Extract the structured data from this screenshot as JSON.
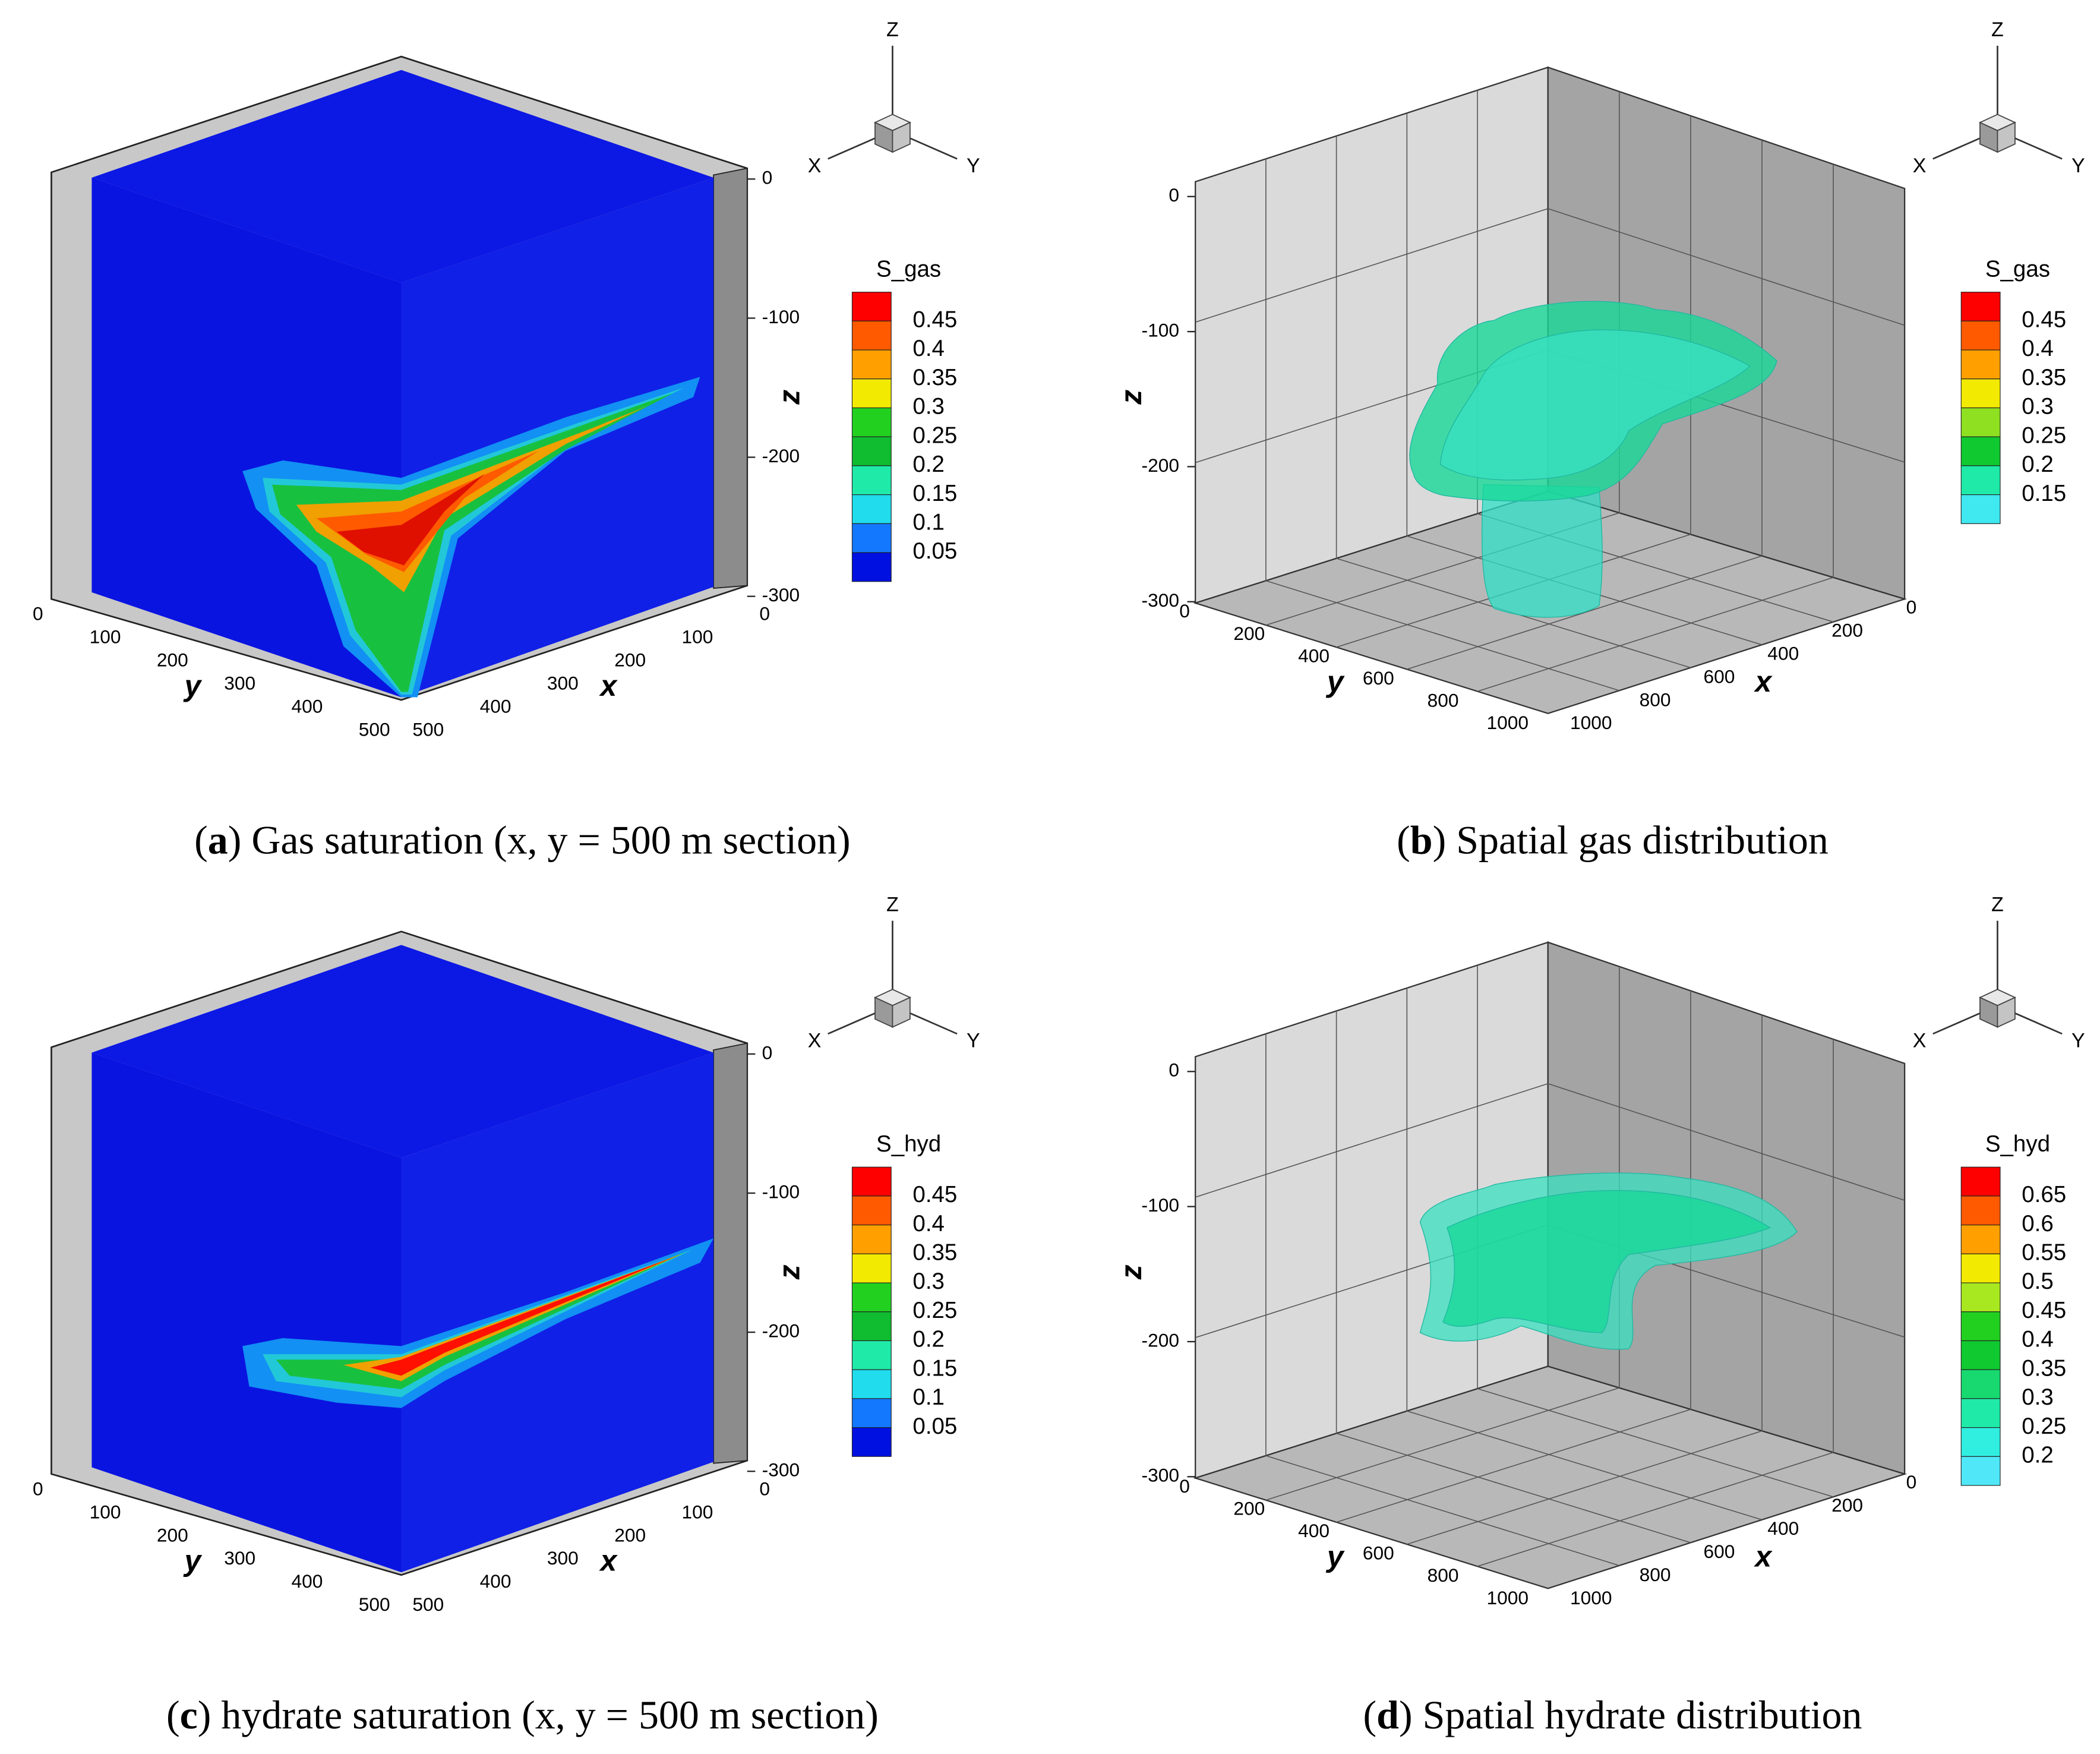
{
  "panels": [
    {
      "kind": "section",
      "caption": {
        "open": "(",
        "letter": "a",
        "text": ") Gas saturation (x, y = 500 m section)"
      },
      "axes": {
        "x_label": "x",
        "y_label": "y",
        "z_label": "z",
        "xticks": [
          0,
          100,
          200,
          300,
          400,
          500
        ],
        "yticks": [
          0,
          100,
          200,
          300,
          400,
          500
        ],
        "zticks": [
          0,
          -100,
          -200,
          -300
        ]
      },
      "triad": {
        "x": "X",
        "y": "Y",
        "z": "Z"
      },
      "colorbar": {
        "title": "S_gas",
        "levels": [
          0.45,
          0.4,
          0.35,
          0.3,
          0.25,
          0.2,
          0.15,
          0.1,
          0.05
        ],
        "colors": [
          "#ff0000",
          "#ff5a00",
          "#ffa000",
          "#f2ea00",
          "#22d020",
          "#10bc30",
          "#20eaa8",
          "#20dcec",
          "#1478ff",
          "#0010e0"
        ]
      }
    },
    {
      "kind": "isosurface",
      "caption": {
        "open": "(",
        "letter": "b",
        "text": ") Spatial gas distribution"
      },
      "axes": {
        "x_label": "x",
        "y_label": "y",
        "z_label": "z",
        "xticks": [
          0,
          200,
          400,
          600,
          800,
          1000
        ],
        "yticks": [
          0,
          200,
          400,
          600,
          800,
          1000
        ],
        "zticks": [
          0,
          -100,
          -200,
          -300
        ]
      },
      "triad": {
        "x": "X",
        "y": "Y",
        "z": "Z"
      },
      "colorbar": {
        "title": "S_gas",
        "levels": [
          0.45,
          0.4,
          0.35,
          0.3,
          0.25,
          0.2,
          0.15
        ],
        "colors": [
          "#ff0000",
          "#ff5a00",
          "#ffa000",
          "#f2ea00",
          "#8ee020",
          "#10c830",
          "#20eaa8",
          "#40e8f0"
        ]
      }
    },
    {
      "kind": "section",
      "caption": {
        "open": "(",
        "letter": "c",
        "text": ") hydrate saturation (x, y = 500 m section)"
      },
      "axes": {
        "x_label": "x",
        "y_label": "y",
        "z_label": "z",
        "xticks": [
          0,
          100,
          200,
          300,
          400,
          500
        ],
        "yticks": [
          0,
          100,
          200,
          300,
          400,
          500
        ],
        "zticks": [
          0,
          -100,
          -200,
          -300
        ]
      },
      "triad": {
        "x": "X",
        "y": "Y",
        "z": "Z"
      },
      "colorbar": {
        "title": "S_hyd",
        "levels": [
          0.45,
          0.4,
          0.35,
          0.3,
          0.25,
          0.2,
          0.15,
          0.1,
          0.05
        ],
        "colors": [
          "#ff0000",
          "#ff5a00",
          "#ffa000",
          "#f2ea00",
          "#22d020",
          "#10bc30",
          "#20eaa8",
          "#20dcec",
          "#1478ff",
          "#0010e0"
        ]
      }
    },
    {
      "kind": "isosurface",
      "caption": {
        "open": "(",
        "letter": "d",
        "text": ") Spatial hydrate distribution"
      },
      "axes": {
        "x_label": "x",
        "y_label": "y",
        "z_label": "z",
        "xticks": [
          0,
          200,
          400,
          600,
          800,
          1000
        ],
        "yticks": [
          0,
          200,
          400,
          600,
          800,
          1000
        ],
        "zticks": [
          0,
          -100,
          -200,
          -300
        ]
      },
      "triad": {
        "x": "X",
        "y": "Y",
        "z": "Z"
      },
      "colorbar": {
        "title": "S_hyd",
        "levels": [
          0.65,
          0.6,
          0.55,
          0.5,
          0.45,
          0.4,
          0.35,
          0.3,
          0.25,
          0.2
        ],
        "colors": [
          "#ff0000",
          "#ff5a00",
          "#ffa000",
          "#f2ea00",
          "#a8e820",
          "#22d020",
          "#10c830",
          "#18d870",
          "#20eaa8",
          "#30eee0",
          "#50e8f8"
        ]
      }
    }
  ]
}
